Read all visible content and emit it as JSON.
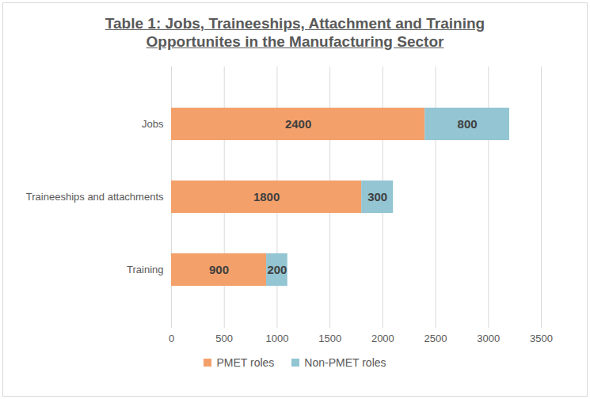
{
  "chart_data": {
    "type": "bar",
    "title": "Table 1: Jobs, Traineeships, Attachment and Training Opportunites in the Manufacturing Sector",
    "orientation": "horizontal",
    "stacked": true,
    "categories": [
      "Jobs",
      "Traineeships and attachments",
      "Training"
    ],
    "series": [
      {
        "name": "PMET roles",
        "color": "#F4A06A",
        "values": [
          2400,
          1800,
          900
        ]
      },
      {
        "name": "Non-PMET roles",
        "color": "#93C5D3",
        "values": [
          800,
          300,
          200
        ]
      }
    ],
    "xlim": [
      0,
      3500
    ],
    "xticks": [
      0,
      500,
      1000,
      1500,
      2000,
      2500,
      3000,
      3500
    ],
    "grid": true,
    "legend": "bottom",
    "data_labels": true
  }
}
